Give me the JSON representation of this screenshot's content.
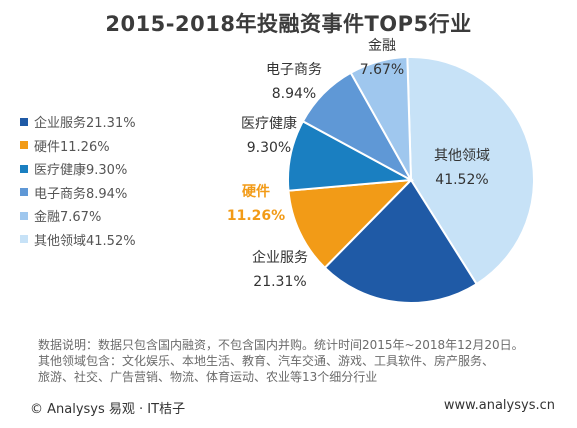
{
  "chart_data": {
    "type": "pie",
    "title": "2015-2018年投融资事件TOP5行业",
    "slices": [
      {
        "label": "企业服务",
        "value": 21.31,
        "color": "#1f5aa6"
      },
      {
        "label": "硬件",
        "value": 11.26,
        "color": "#f29b17"
      },
      {
        "label": "医疗健康",
        "value": 9.3,
        "color": "#1a7fc1"
      },
      {
        "label": "电子商务",
        "value": 8.94,
        "color": "#5f98d6"
      },
      {
        "label": "金融",
        "value": 7.67,
        "color": "#9fc7ee"
      },
      {
        "label": "其他领域",
        "value": 41.52,
        "color": "#c7e2f7"
      }
    ],
    "legend": {
      "placement": "left",
      "entries": [
        "企业服务21.31%",
        "硬件11.26%",
        "医疗健康9.30%",
        "电子商务8.94%",
        "金融7.67%",
        "其他领域41.52%"
      ]
    },
    "slice_labels": [
      {
        "name": "企业服务",
        "pct": "21.31%",
        "highlight": false
      },
      {
        "name": "硬件",
        "pct": "11.26%",
        "highlight": true
      },
      {
        "name": "医疗健康",
        "pct": "9.30%",
        "highlight": false
      },
      {
        "name": "电子商务",
        "pct": "8.94%",
        "highlight": false
      },
      {
        "name": "金融",
        "pct": "7.67%",
        "highlight": false
      },
      {
        "name": "其他领域",
        "pct": "41.52%",
        "highlight": false
      }
    ]
  },
  "footnote": {
    "line1": "数据说明：数据只包含国内融资，不包含国内并购。统计时间2015年~2018年12月20日。",
    "line2": "其他领域包含：文化娱乐、本地生活、教育、汽车交通、游戏、工具软件、房产服务、",
    "line3": "旅游、社交、广告营销、物流、体育运动、农业等13个细分行业"
  },
  "footer": {
    "copyright": "© Analysys 易观 · IT桔子",
    "website": "www.analysys.cn"
  }
}
